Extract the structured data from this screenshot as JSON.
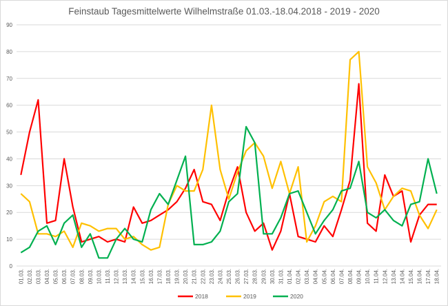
{
  "chart_data": {
    "type": "line",
    "title": "Feinstaub Tagesmittelwerte Wilhelmstraße 01.03.-18.04.2018 - 2019 - 2020",
    "xlabel": "",
    "ylabel": "",
    "ylim": [
      0,
      90
    ],
    "yticks": [
      0,
      10,
      20,
      30,
      40,
      50,
      60,
      70,
      80,
      90
    ],
    "grid": true,
    "legend_position": "bottom",
    "categories": [
      "01.03.",
      "02.03.",
      "03.03.",
      "04.03.",
      "05.03.",
      "06.03.",
      "07.03.",
      "08.03.",
      "09.03.",
      "10.03.",
      "11.03.",
      "12.03.",
      "13.03.",
      "14.03.",
      "15.03.",
      "16.03.",
      "17.03.",
      "18.03.",
      "19.03.",
      "20.03.",
      "21.03.",
      "22.03.",
      "23.03.",
      "24.03.",
      "25.03.",
      "26.03.",
      "27.03.",
      "28.03.",
      "29.03.",
      "30.03.",
      "31.03.",
      "01.04.",
      "02.04.",
      "03.04.",
      "04.04.",
      "05.04.",
      "06.04.",
      "07.04.",
      "08.04.",
      "09.04.",
      "10.04.",
      "11.04.",
      "12.04.",
      "13.04.",
      "14.04.",
      "15.04.",
      "16.04.",
      "17.04.",
      "18.04."
    ],
    "series": [
      {
        "name": "2018",
        "color": "#ff0000",
        "values": [
          34,
          50,
          62,
          16,
          17,
          40,
          22,
          9,
          10,
          11,
          9,
          10,
          9,
          22,
          16,
          17,
          19,
          21,
          24,
          29,
          36,
          24,
          23,
          17,
          28,
          37,
          20,
          13,
          16,
          6,
          13,
          27,
          11,
          10,
          9,
          15,
          11,
          21,
          32,
          68,
          16,
          13,
          34,
          26,
          28,
          9,
          19,
          23,
          23
        ]
      },
      {
        "name": "2019",
        "color": "#ffc000",
        "values": [
          27,
          24,
          12,
          12,
          11,
          13,
          7,
          16,
          15,
          13,
          14,
          14,
          10,
          11,
          8,
          6,
          7,
          23,
          30,
          28,
          28,
          36,
          60,
          36,
          25,
          35,
          43,
          46,
          41,
          29,
          39,
          27,
          37,
          9,
          15,
          24,
          26,
          24,
          77,
          80,
          37,
          31,
          21,
          26,
          29,
          28,
          19,
          14,
          21
        ]
      },
      {
        "name": "2020",
        "color": "#00b050",
        "values": [
          5,
          7,
          13,
          15,
          8,
          16,
          19,
          7,
          12,
          3,
          3,
          10,
          14,
          10,
          9,
          21,
          27,
          23,
          32,
          41,
          8,
          8,
          9,
          13,
          24,
          27,
          52,
          46,
          12,
          12,
          18,
          27,
          28,
          20,
          12,
          17,
          21,
          28,
          29,
          39,
          20,
          18,
          21,
          17,
          15,
          23,
          24,
          40,
          27
        ]
      }
    ]
  }
}
